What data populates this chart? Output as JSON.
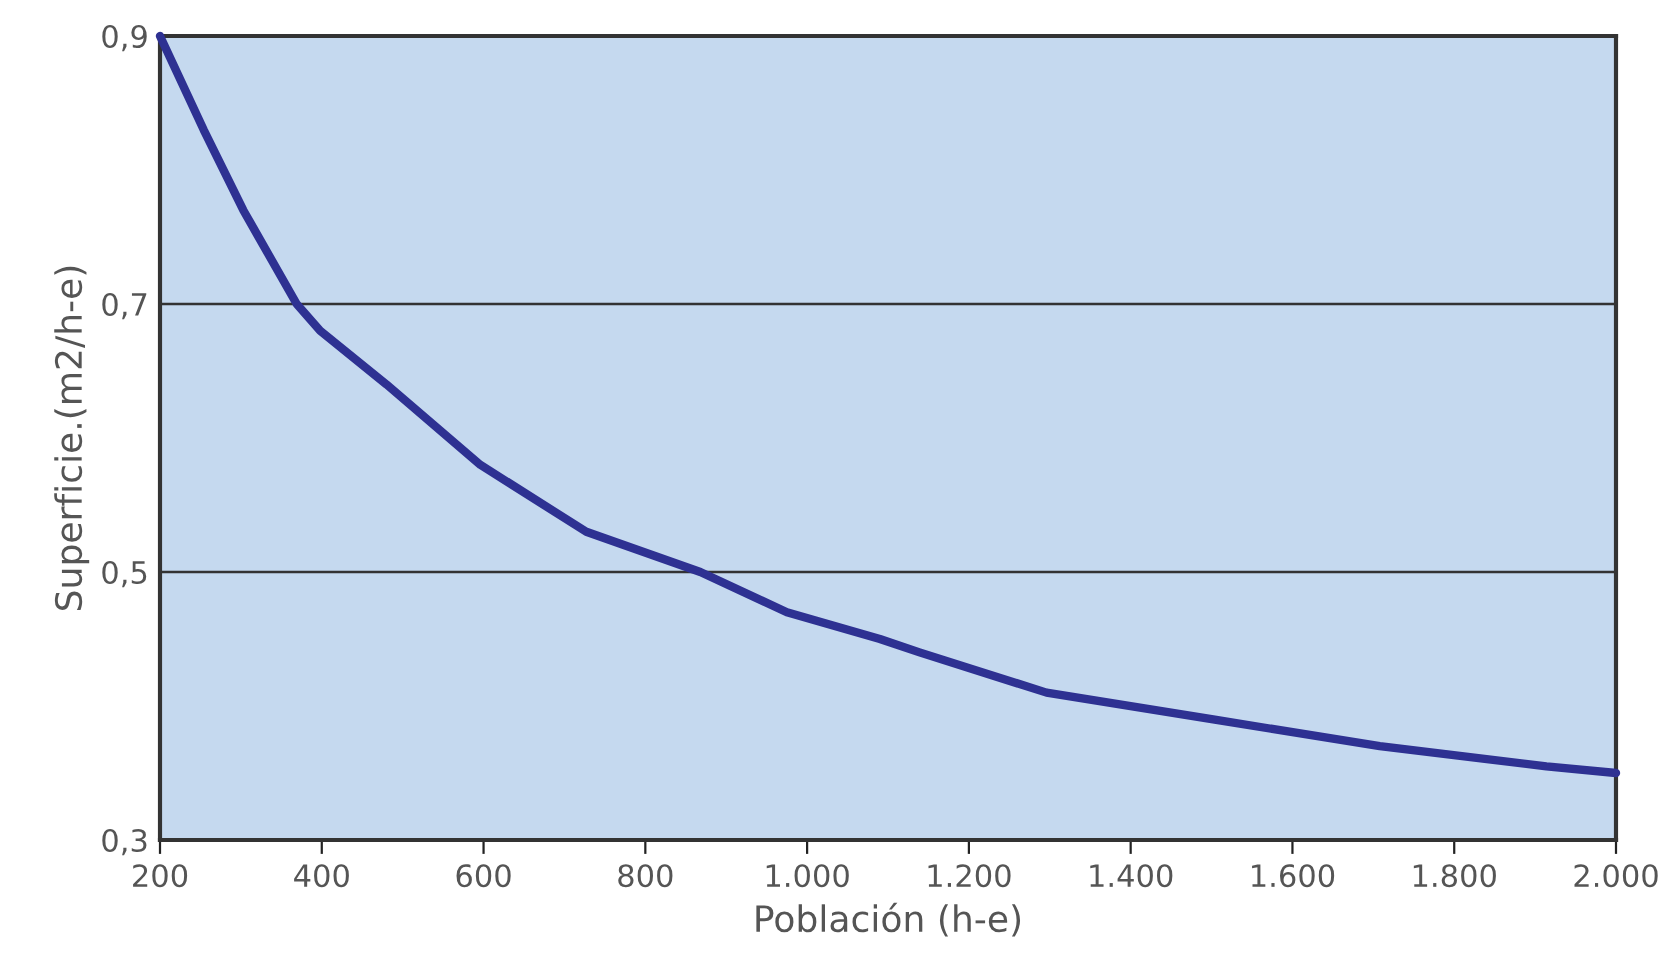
{
  "chart_data": {
    "type": "line",
    "xlabel": "Población (h-e)",
    "ylabel": "Superficie.(m2/h-e)",
    "series": [
      {
        "color": "#2e3192",
        "x": [
          200,
          254,
          303,
          369,
          398,
          480,
          596,
          727,
          868,
          975,
          1090,
          1139,
          1296,
          1502,
          1708,
          1914,
          2000
        ],
        "values": [
          0.9,
          0.83,
          0.77,
          0.7,
          0.68,
          0.64,
          0.58,
          0.53,
          0.5,
          0.47,
          0.45,
          0.44,
          0.41,
          0.39,
          0.37,
          0.355,
          0.35
        ]
      }
    ],
    "xlim": [
      200,
      2000
    ],
    "ylim": [
      0.3,
      0.9
    ],
    "xticks": [
      200,
      400,
      600,
      800,
      {
        "value": 1000,
        "label": "1.000"
      },
      {
        "value": 1200,
        "label": "1.200"
      },
      {
        "value": 1400,
        "label": "1.400"
      },
      {
        "value": 1600,
        "label": "1.600"
      },
      {
        "value": 1800,
        "label": "1.800"
      },
      {
        "value": 2000,
        "label": "2.000"
      }
    ],
    "yticks": [
      {
        "value": 0.3,
        "label": "0,3"
      },
      {
        "value": 0.5,
        "label": "0,5"
      },
      {
        "value": 0.7,
        "label": "0,7"
      },
      {
        "value": 0.9,
        "label": "0,9"
      }
    ],
    "grid": "y",
    "marker": "none",
    "line_style": "solid"
  }
}
